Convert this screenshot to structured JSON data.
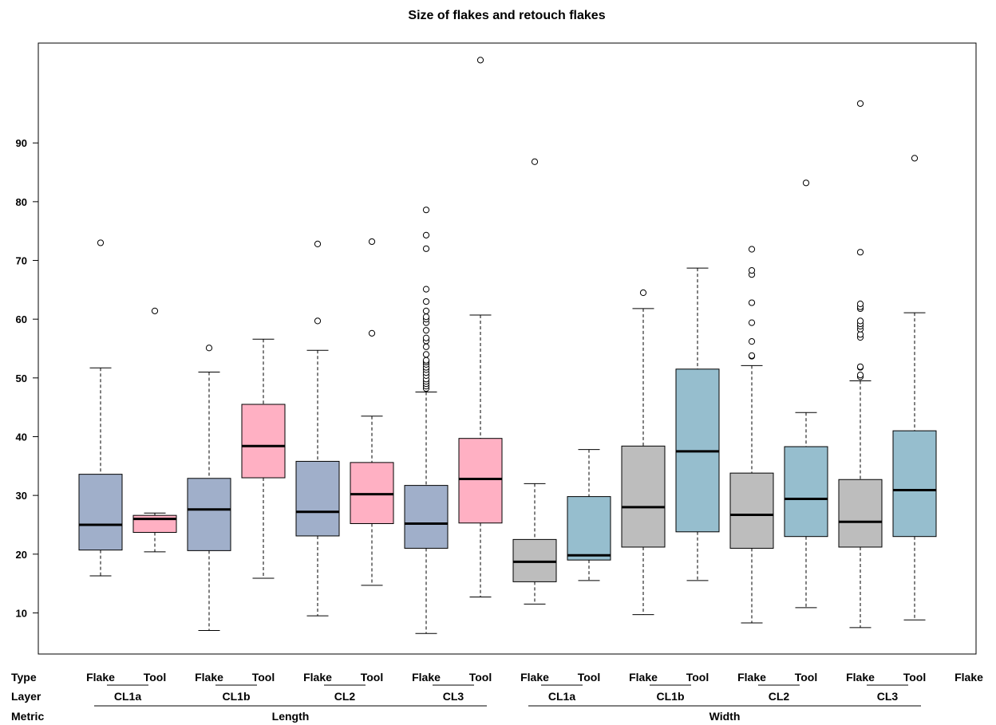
{
  "chart_data": {
    "type": "boxplot",
    "title": "Size of flakes and retouch flakes",
    "ylim": [
      3,
      107
    ],
    "yticks": [
      10,
      20,
      30,
      40,
      50,
      60,
      70,
      80,
      90
    ],
    "row_labels": {
      "type": "Type",
      "layer": "Layer",
      "metric": "Metric"
    },
    "trailing_type_label": "Flake",
    "colors": {
      "length_flake": "#a0afca",
      "length_tool": "#ffb0c3",
      "width_flake": "#bdbdbd",
      "width_tool": "#96bece"
    },
    "metrics": [
      {
        "name": "Length",
        "layers": [
          0,
          1,
          2,
          3
        ]
      },
      {
        "name": "Width",
        "layers": [
          4,
          5,
          6,
          7
        ]
      }
    ],
    "layers": [
      {
        "name": "CL1a",
        "boxes": [
          0,
          1
        ]
      },
      {
        "name": "CL1b",
        "boxes": [
          2,
          3
        ]
      },
      {
        "name": "CL2",
        "boxes": [
          4,
          5
        ]
      },
      {
        "name": "CL3",
        "boxes": [
          6,
          7
        ]
      },
      {
        "name": "CL1a",
        "boxes": [
          8,
          9
        ]
      },
      {
        "name": "CL1b",
        "boxes": [
          10,
          11
        ]
      },
      {
        "name": "CL2",
        "boxes": [
          12,
          13
        ]
      },
      {
        "name": "CL3",
        "boxes": [
          14,
          15
        ]
      }
    ],
    "boxes": [
      {
        "type": "Flake",
        "color_key": "length_flake",
        "min": 16.3,
        "q1": 20.7,
        "median": 25.0,
        "q3": 33.6,
        "max": 51.7,
        "outliers": [
          73.0
        ]
      },
      {
        "type": "Tool",
        "color_key": "length_tool",
        "min": 20.4,
        "q1": 23.7,
        "median": 26.0,
        "q3": 26.6,
        "max": 27.0,
        "outliers": [
          61.4
        ]
      },
      {
        "type": "Flake",
        "color_key": "length_flake",
        "min": 7.0,
        "q1": 20.6,
        "median": 27.6,
        "q3": 32.9,
        "max": 51.0,
        "outliers": [
          55.1
        ]
      },
      {
        "type": "Tool",
        "color_key": "length_tool",
        "min": 15.9,
        "q1": 33.0,
        "median": 38.4,
        "q3": 45.5,
        "max": 56.6,
        "outliers": []
      },
      {
        "type": "Flake",
        "color_key": "length_flake",
        "min": 9.5,
        "q1": 23.1,
        "median": 27.2,
        "q3": 35.8,
        "max": 54.7,
        "outliers": [
          59.7,
          72.8
        ]
      },
      {
        "type": "Tool",
        "color_key": "length_tool",
        "min": 14.7,
        "q1": 25.2,
        "median": 30.2,
        "q3": 35.6,
        "max": 43.5,
        "outliers": [
          57.6,
          73.2
        ]
      },
      {
        "type": "Flake",
        "color_key": "length_flake",
        "min": 6.5,
        "q1": 21.0,
        "median": 25.2,
        "q3": 31.7,
        "max": 47.6,
        "outliers": [
          48.2,
          48.6,
          49.0,
          49.4,
          49.8,
          50.4,
          50.9,
          51.4,
          51.8,
          52.3,
          52.7,
          53.0,
          54.0,
          55.3,
          56.3,
          56.8,
          58.1,
          59.4,
          60.0,
          60.4,
          61.4,
          63.0,
          65.1,
          72.0,
          74.3,
          78.6
        ]
      },
      {
        "type": "Tool",
        "color_key": "length_tool",
        "min": 12.7,
        "q1": 25.3,
        "median": 32.8,
        "q3": 39.7,
        "max": 60.7,
        "outliers": [
          104.1
        ]
      },
      {
        "type": "Flake",
        "color_key": "width_flake",
        "min": 11.5,
        "q1": 15.3,
        "median": 18.7,
        "q3": 22.5,
        "max": 32.0,
        "outliers": [
          86.8
        ]
      },
      {
        "type": "Tool",
        "color_key": "width_tool",
        "min": 15.5,
        "q1": 19.0,
        "median": 19.8,
        "q3": 29.8,
        "max": 37.8,
        "outliers": []
      },
      {
        "type": "Flake",
        "color_key": "width_flake",
        "min": 9.7,
        "q1": 21.2,
        "median": 28.0,
        "q3": 38.4,
        "max": 61.8,
        "outliers": [
          64.5
        ]
      },
      {
        "type": "Tool",
        "color_key": "width_tool",
        "min": 15.5,
        "q1": 23.8,
        "median": 37.5,
        "q3": 51.5,
        "max": 68.7,
        "outliers": []
      },
      {
        "type": "Flake",
        "color_key": "width_flake",
        "min": 8.3,
        "q1": 21.0,
        "median": 26.7,
        "q3": 33.8,
        "max": 52.1,
        "outliers": [
          53.7,
          53.8,
          56.2,
          59.4,
          62.8,
          67.6,
          68.3,
          71.9
        ]
      },
      {
        "type": "Tool",
        "color_key": "width_tool",
        "min": 10.9,
        "q1": 23.0,
        "median": 29.4,
        "q3": 38.3,
        "max": 44.1,
        "outliers": [
          83.2
        ]
      },
      {
        "type": "Flake",
        "color_key": "width_flake",
        "min": 7.5,
        "q1": 21.2,
        "median": 25.5,
        "q3": 32.7,
        "max": 49.5,
        "outliers": [
          50.2,
          50.5,
          51.8,
          51.9,
          56.9,
          57.4,
          58.3,
          58.8,
          59.2,
          59.7,
          61.8,
          62.1,
          62.6,
          71.4,
          96.7
        ]
      },
      {
        "type": "Tool",
        "color_key": "width_tool",
        "min": 8.8,
        "q1": 23.0,
        "median": 30.9,
        "q3": 41.0,
        "max": 61.1,
        "outliers": [
          87.4
        ]
      }
    ]
  }
}
